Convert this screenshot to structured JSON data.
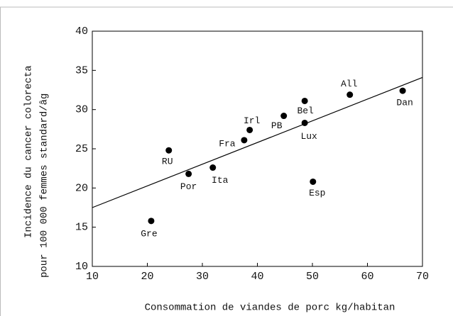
{
  "chart_data": {
    "type": "scatter",
    "xlabel": "Consommation de viandes de porc kg/habitan",
    "ylabel": [
      "Incidence du cancer colorecta",
      "pour 100 000 femmes standard/âg"
    ],
    "x": [
      20.7,
      23.9,
      27.5,
      31.9,
      37.6,
      38.6,
      44.8,
      48.6,
      48.6,
      50.1,
      56.8,
      66.4
    ],
    "values": [
      15.8,
      24.8,
      21.8,
      22.6,
      26.1,
      27.4,
      29.2,
      31.1,
      28.3,
      20.8,
      31.9,
      32.4
    ],
    "point_labels": [
      "Gre",
      "RU",
      "Por",
      "Ita",
      "Fra",
      "Irl",
      "PB",
      "Bel",
      "Lux",
      "Esp",
      "All",
      "Dan"
    ],
    "color": "#000000",
    "trendline": {
      "x": [
        10,
        70
      ],
      "y": [
        17.5,
        34.1
      ]
    },
    "xlim": [
      10,
      70
    ],
    "xticks": [
      10,
      20,
      30,
      40,
      50,
      60,
      70
    ],
    "ylim": [
      10,
      40
    ],
    "yticks": [
      10,
      15,
      20,
      25,
      30,
      35,
      40
    ]
  }
}
